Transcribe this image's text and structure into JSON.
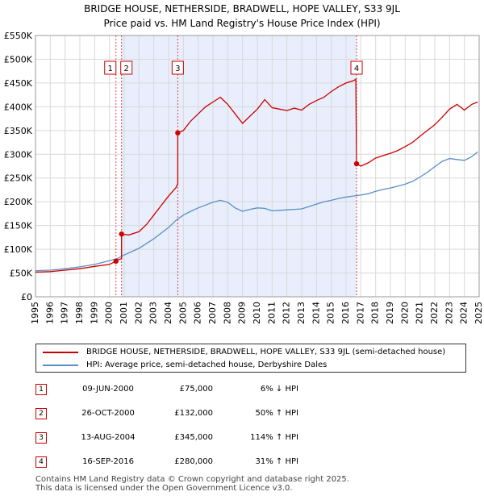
{
  "title_line1": "BRIDGE HOUSE, NETHERSIDE, BRADWELL, HOPE VALLEY, S33 9JL",
  "title_line2": "Price paid vs. HM Land Registry's House Price Index (HPI)",
  "legend": {
    "property": "BRIDGE HOUSE, NETHERSIDE, BRADWELL, HOPE VALLEY, S33 9JL (semi-detached house)",
    "hpi": "HPI: Average price, semi-detached house, Derbyshire Dales"
  },
  "transactions": [
    {
      "num": "1",
      "date": "09-JUN-2000",
      "price": "£75,000",
      "hpi": "6% ↓ HPI"
    },
    {
      "num": "2",
      "date": "26-OCT-2000",
      "price": "£132,000",
      "hpi": "50% ↑ HPI"
    },
    {
      "num": "3",
      "date": "13-AUG-2004",
      "price": "£345,000",
      "hpi": "114% ↑ HPI"
    },
    {
      "num": "4",
      "date": "16-SEP-2016",
      "price": "£280,000",
      "hpi": "31% ↑ HPI"
    }
  ],
  "footer_line1": "Contains HM Land Registry data © Crown copyright and database right 2025.",
  "footer_line2": "This data is licensed under the Open Government Licence v3.0.",
  "colors": {
    "property": "#cc0000",
    "hpi": "#5b8ec6",
    "shade": "#e8eefc",
    "grid": "#d9d9d9"
  },
  "chart_data": {
    "type": "line",
    "title": "BRIDGE HOUSE, NETHERSIDE, BRADWELL, HOPE VALLEY, S33 9JL — Price paid vs. HM Land Registry's House Price Index (HPI)",
    "xlabel": "",
    "ylabel": "",
    "xlim": [
      1995,
      2025
    ],
    "ylim": [
      0,
      550000
    ],
    "x_ticks": [
      "1995",
      "1996",
      "1997",
      "1998",
      "1999",
      "2000",
      "2001",
      "2002",
      "2003",
      "2004",
      "2005",
      "2006",
      "2007",
      "2008",
      "2009",
      "2010",
      "2011",
      "2012",
      "2013",
      "2014",
      "2015",
      "2016",
      "2017",
      "2018",
      "2019",
      "2020",
      "2021",
      "2022",
      "2023",
      "2024",
      "2025"
    ],
    "y_ticks": [
      {
        "value": 0,
        "label": "£0"
      },
      {
        "value": 50000,
        "label": "£50K"
      },
      {
        "value": 100000,
        "label": "£100K"
      },
      {
        "value": 150000,
        "label": "£150K"
      },
      {
        "value": 200000,
        "label": "£200K"
      },
      {
        "value": 250000,
        "label": "£250K"
      },
      {
        "value": 300000,
        "label": "£300K"
      },
      {
        "value": 350000,
        "label": "£350K"
      },
      {
        "value": 400000,
        "label": "£400K"
      },
      {
        "value": 450000,
        "label": "£450K"
      },
      {
        "value": 500000,
        "label": "£500K"
      },
      {
        "value": 550000,
        "label": "£550K"
      }
    ],
    "shaded_period": [
      2000.8,
      2016.7
    ],
    "sales": [
      {
        "label": "1",
        "x": 2000.44,
        "y": 75000
      },
      {
        "label": "2",
        "x": 2000.82,
        "y": 132000
      },
      {
        "label": "3",
        "x": 2004.62,
        "y": 345000
      },
      {
        "label": "4",
        "x": 2016.71,
        "y": 280000
      }
    ],
    "series": [
      {
        "name": "BRIDGE HOUSE, NETHERSIDE, BRADWELL, HOPE VALLEY, S33 9JL (semi-detached house)",
        "points": [
          [
            1995,
            52000
          ],
          [
            1996,
            53000
          ],
          [
            1997,
            56000
          ],
          [
            1998,
            59000
          ],
          [
            1999,
            64000
          ],
          [
            2000.0,
            68000
          ],
          [
            2000.44,
            75000
          ],
          [
            2000.44,
            77000
          ],
          [
            2000.82,
            80000
          ],
          [
            2000.82,
            132000
          ],
          [
            2001.3,
            130000
          ],
          [
            2002,
            137000
          ],
          [
            2002.5,
            152000
          ],
          [
            2003,
            172000
          ],
          [
            2003.5,
            192000
          ],
          [
            2004,
            212000
          ],
          [
            2004.5,
            230000
          ],
          [
            2004.62,
            238000
          ],
          [
            2004.62,
            345000
          ],
          [
            2005,
            350000
          ],
          [
            2005.5,
            370000
          ],
          [
            2006,
            385000
          ],
          [
            2006.5,
            400000
          ],
          [
            2007,
            410000
          ],
          [
            2007.5,
            420000
          ],
          [
            2008,
            405000
          ],
          [
            2008.5,
            385000
          ],
          [
            2009,
            365000
          ],
          [
            2009.5,
            380000
          ],
          [
            2010,
            395000
          ],
          [
            2010.5,
            415000
          ],
          [
            2011,
            398000
          ],
          [
            2011.5,
            395000
          ],
          [
            2012,
            392000
          ],
          [
            2012.5,
            397000
          ],
          [
            2013,
            393000
          ],
          [
            2013.5,
            405000
          ],
          [
            2014,
            413000
          ],
          [
            2014.5,
            420000
          ],
          [
            2015,
            432000
          ],
          [
            2015.5,
            442000
          ],
          [
            2016,
            450000
          ],
          [
            2016.5,
            455000
          ],
          [
            2016.66,
            458000
          ],
          [
            2016.71,
            280000
          ],
          [
            2017,
            275000
          ],
          [
            2017.5,
            282000
          ],
          [
            2018,
            292000
          ],
          [
            2018.5,
            297000
          ],
          [
            2019,
            302000
          ],
          [
            2019.5,
            308000
          ],
          [
            2020,
            316000
          ],
          [
            2020.5,
            325000
          ],
          [
            2021,
            338000
          ],
          [
            2021.5,
            350000
          ],
          [
            2022,
            362000
          ],
          [
            2022.5,
            378000
          ],
          [
            2023,
            395000
          ],
          [
            2023.5,
            405000
          ],
          [
            2024,
            393000
          ],
          [
            2024.5,
            405000
          ],
          [
            2024.9,
            410000
          ]
        ]
      },
      {
        "name": "HPI: Average price, semi-detached house, Derbyshire Dales",
        "points": [
          [
            1995,
            55000
          ],
          [
            1996,
            56000
          ],
          [
            1997,
            59000
          ],
          [
            1998,
            63000
          ],
          [
            1999,
            68000
          ],
          [
            2000,
            76000
          ],
          [
            2000.5,
            80000
          ],
          [
            2001,
            88000
          ],
          [
            2002,
            102000
          ],
          [
            2003,
            122000
          ],
          [
            2003.5,
            134000
          ],
          [
            2004,
            146000
          ],
          [
            2004.5,
            161000
          ],
          [
            2005,
            172000
          ],
          [
            2005.5,
            180000
          ],
          [
            2006,
            187000
          ],
          [
            2006.5,
            193000
          ],
          [
            2007,
            199000
          ],
          [
            2007.5,
            203000
          ],
          [
            2008,
            199000
          ],
          [
            2008.5,
            187000
          ],
          [
            2009,
            180000
          ],
          [
            2009.5,
            184000
          ],
          [
            2010,
            187000
          ],
          [
            2010.5,
            186000
          ],
          [
            2011,
            181000
          ],
          [
            2011.5,
            182000
          ],
          [
            2012,
            183000
          ],
          [
            2012.5,
            184000
          ],
          [
            2013,
            185000
          ],
          [
            2013.5,
            190000
          ],
          [
            2014,
            195000
          ],
          [
            2014.5,
            200000
          ],
          [
            2015,
            203000
          ],
          [
            2015.5,
            207000
          ],
          [
            2016,
            210000
          ],
          [
            2016.5,
            212000
          ],
          [
            2017,
            214000
          ],
          [
            2017.5,
            217000
          ],
          [
            2018,
            222000
          ],
          [
            2018.5,
            226000
          ],
          [
            2019,
            229000
          ],
          [
            2019.5,
            233000
          ],
          [
            2020,
            237000
          ],
          [
            2020.5,
            243000
          ],
          [
            2021,
            252000
          ],
          [
            2021.5,
            262000
          ],
          [
            2022,
            274000
          ],
          [
            2022.5,
            285000
          ],
          [
            2023,
            291000
          ],
          [
            2023.5,
            289000
          ],
          [
            2024,
            287000
          ],
          [
            2024.5,
            295000
          ],
          [
            2024.9,
            305000
          ]
        ]
      }
    ]
  }
}
